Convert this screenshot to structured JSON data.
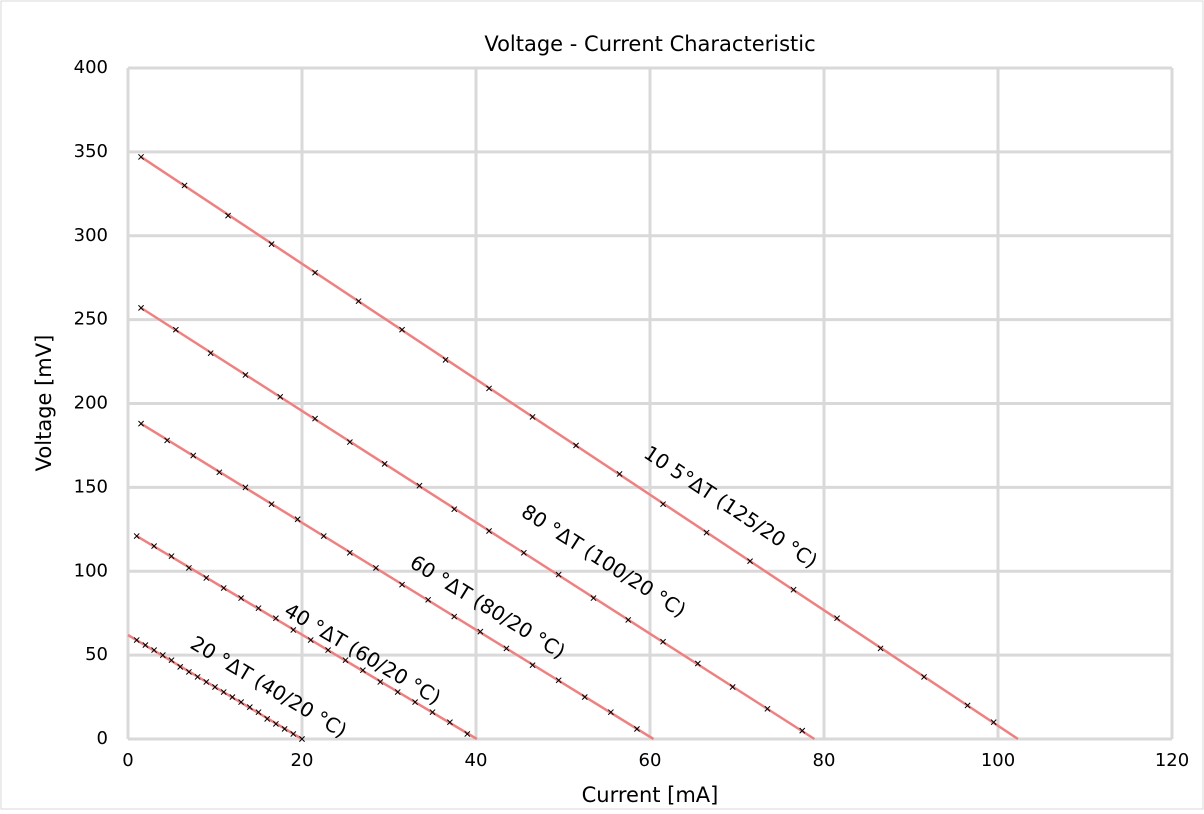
{
  "chart_data": {
    "type": "scatter",
    "title": "Voltage - Current Characteristic",
    "x_label": "Current [mA]",
    "y_label": "Voltage  [mV]",
    "xlim": [
      0,
      120
    ],
    "xticks": [
      0,
      20,
      40,
      60,
      80,
      100,
      120
    ],
    "ylim": [
      0,
      400
    ],
    "yticks": [
      0,
      50,
      100,
      150,
      200,
      250,
      300,
      350,
      400
    ],
    "grid": true,
    "marker_color": "#000000",
    "fit_color": "#f08080",
    "series": [
      {
        "name": "20 °ΔT (40/20 °C)",
        "x": [
          1,
          2,
          3,
          4,
          5,
          6,
          7,
          8,
          9,
          10,
          11,
          12,
          13,
          14,
          15,
          16,
          17,
          18,
          19,
          20
        ],
        "y": [
          59,
          56,
          53,
          50,
          47,
          43,
          40,
          37,
          34,
          31,
          28,
          25,
          22,
          19,
          16,
          12,
          9,
          6,
          3,
          0
        ],
        "fit": {
          "x": [
            0,
            20
          ],
          "y": [
            62,
            0
          ]
        }
      },
      {
        "name": "40 °ΔT (60/20 °C)",
        "x": [
          1,
          3,
          5,
          7,
          9,
          11,
          13,
          15,
          17,
          19,
          21,
          23,
          25,
          27,
          29,
          31,
          33,
          35,
          37,
          39
        ],
        "y": [
          121,
          115,
          109,
          102,
          96,
          90,
          84,
          78,
          72,
          65,
          59,
          53,
          47,
          41,
          34,
          28,
          22,
          16,
          10,
          3
        ],
        "fit": {
          "x": [
            1,
            40.1
          ],
          "y": [
            121,
            0
          ]
        }
      },
      {
        "name": "60 °ΔT (80/20 °C)",
        "x": [
          1.5,
          4.5,
          7.5,
          10.5,
          13.5,
          16.5,
          19.5,
          22.5,
          25.5,
          28.5,
          31.5,
          34.5,
          37.5,
          40.5,
          43.5,
          46.5,
          49.5,
          52.5,
          55.5,
          58.5
        ],
        "y": [
          188,
          178,
          169,
          159,
          150,
          140,
          131,
          121,
          111,
          102,
          92,
          83,
          73,
          64,
          54,
          44,
          35,
          25,
          16,
          6
        ],
        "fit": {
          "x": [
            1.5,
            60.4
          ],
          "y": [
            188,
            0
          ]
        }
      },
      {
        "name": "80 °ΔT (100/20 °C)",
        "x": [
          1.5,
          5.5,
          9.5,
          13.5,
          17.5,
          21.5,
          25.5,
          29.5,
          33.5,
          37.5,
          41.5,
          45.5,
          49.5,
          53.5,
          57.5,
          61.5,
          65.5,
          69.5,
          73.5,
          77.5
        ],
        "y": [
          257,
          244,
          230,
          217,
          204,
          191,
          177,
          164,
          151,
          137,
          124,
          111,
          98,
          84,
          71,
          58,
          45,
          31,
          18,
          5
        ],
        "fit": {
          "x": [
            1.5,
            78.9
          ],
          "y": [
            257,
            0
          ]
        }
      },
      {
        "name": "10 5°ΔT (125/20 °C)",
        "x": [
          1.5,
          6.5,
          11.5,
          16.5,
          21.5,
          26.5,
          31.5,
          36.5,
          41.5,
          46.5,
          51.5,
          56.5,
          61.5,
          66.5,
          71.5,
          76.5,
          81.5,
          86.5,
          91.5,
          96.5,
          99.5
        ],
        "y": [
          347,
          330,
          312,
          295,
          278,
          261,
          244,
          226,
          209,
          192,
          175,
          158,
          140,
          123,
          106,
          89,
          72,
          54,
          37,
          20,
          10
        ],
        "fit": {
          "x": [
            1.5,
            102.3
          ],
          "y": [
            347,
            0
          ]
        }
      }
    ]
  }
}
